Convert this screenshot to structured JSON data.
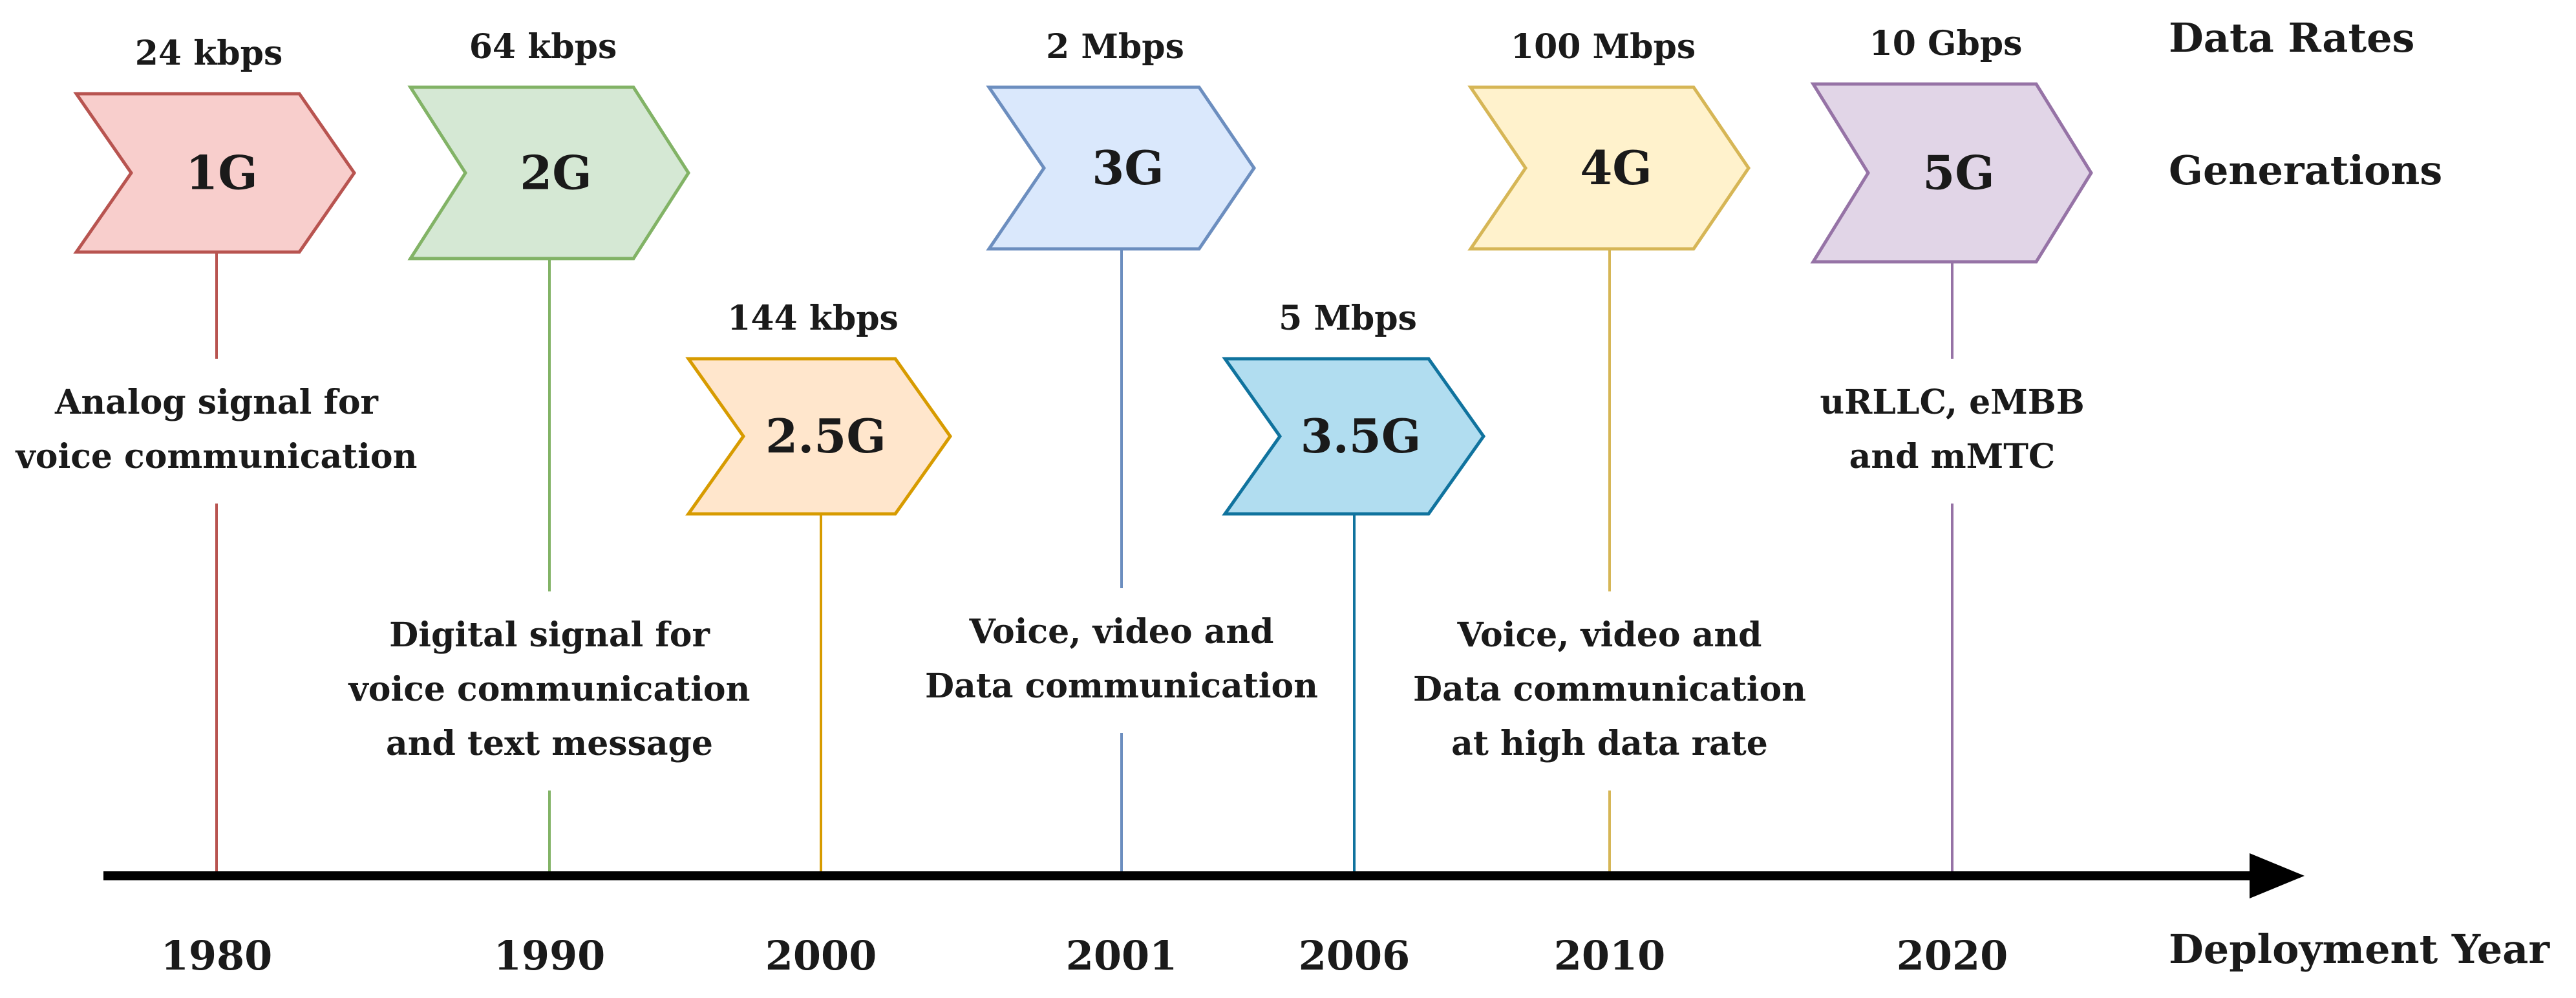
{
  "row_labels": {
    "data_rates": "Data Rates",
    "generations": "Generations",
    "deployment_year": "Deployment Year"
  },
  "generations": [
    {
      "id": "1g",
      "label": "1G",
      "rate": "24 kbps",
      "year": "1980",
      "description": [
        "Analog signal for",
        "voice communication"
      ],
      "fill": "#f8cecc",
      "stroke": "#b85450"
    },
    {
      "id": "2g",
      "label": "2G",
      "rate": "64 kbps",
      "year": "1990",
      "description": [
        "Digital signal for",
        "voice communication",
        "and text message"
      ],
      "fill": "#d5e8d4",
      "stroke": "#82b366"
    },
    {
      "id": "2-5g",
      "label": "2.5G",
      "rate": "144 kbps",
      "year": "2000",
      "description": [],
      "fill": "#ffe6cc",
      "stroke": "#d79b00"
    },
    {
      "id": "3g",
      "label": "3G",
      "rate": "2 Mbps",
      "year": "2001",
      "description": [
        "Voice, video and",
        "Data communication"
      ],
      "fill": "#dae8fc",
      "stroke": "#6c8ebf"
    },
    {
      "id": "3-5g",
      "label": "3.5G",
      "rate": "5 Mbps",
      "year": "2006",
      "description": [],
      "fill": "#b1ddf0",
      "stroke": "#10739e"
    },
    {
      "id": "4g",
      "label": "4G",
      "rate": "100 Mbps",
      "year": "2010",
      "description": [
        "Voice, video and",
        "Data communication",
        "at high data rate"
      ],
      "fill": "#fff2cc",
      "stroke": "#d6b656"
    },
    {
      "id": "5g",
      "label": "5G",
      "rate": "10 Gbps",
      "year": "2020",
      "description": [
        "uRLLC, eMBB",
        "and mMTC"
      ],
      "fill": "#e1d5e7",
      "stroke": "#9673a6"
    }
  ],
  "axis": {
    "color": "#000000"
  }
}
